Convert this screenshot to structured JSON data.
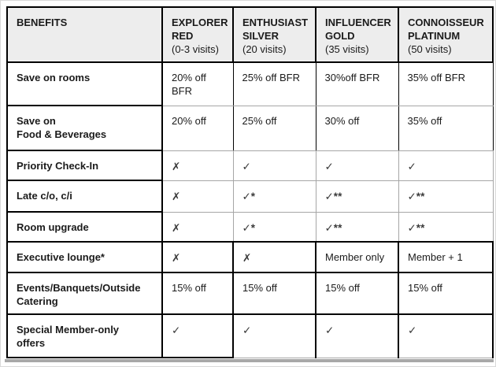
{
  "table": {
    "header": [
      {
        "label": "BENEFITS",
        "sublabel": ""
      },
      {
        "label": "EXPLORER RED",
        "sublabel": "(0-3 visits)"
      },
      {
        "label": "ENTHUSIAST SILVER",
        "sublabel": "(20 visits)"
      },
      {
        "label": "INFLUENCER GOLD",
        "sublabel": "(35 visits)"
      },
      {
        "label": "CONNOISSEUR PLATINUM",
        "sublabel": "(50 visits)"
      }
    ],
    "rows": [
      {
        "benefit": "Save on rooms",
        "values": [
          "20% off BFR",
          "25% off BFR",
          "30%off BFR",
          "35% off BFR"
        ]
      },
      {
        "benefit": "Save on\nFood & Beverages",
        "values": [
          "20% off",
          "25% off",
          "30% off",
          "35% off"
        ]
      },
      {
        "benefit": "Priority Check-In",
        "values": [
          "✗",
          "✓",
          "✓",
          "✓"
        ]
      },
      {
        "benefit": "Late c/o, c/i",
        "values": [
          "✗",
          "✓*",
          "✓**",
          "✓**"
        ]
      },
      {
        "benefit": "Room upgrade",
        "values": [
          "✗",
          "✓*",
          "✓**",
          "✓**"
        ]
      },
      {
        "benefit": "Executive lounge*",
        "values": [
          "✗",
          "✗",
          "Member only",
          "Member + 1"
        ]
      },
      {
        "benefit": "Events/Banquets/Outside\nCatering",
        "values": [
          "15% off",
          "15% off",
          "15% off",
          "15% off"
        ]
      },
      {
        "benefit": "Special Member-only\noffers",
        "values": [
          "✓",
          "✓",
          "✓",
          "✓"
        ]
      }
    ]
  },
  "symbols": {
    "check": "✓",
    "cross": "✗"
  },
  "colors": {
    "header_bg": "#ededed",
    "border_black": "#000000",
    "border_gray": "#a6a6a6",
    "frame_edge": "#a8a8a8"
  }
}
